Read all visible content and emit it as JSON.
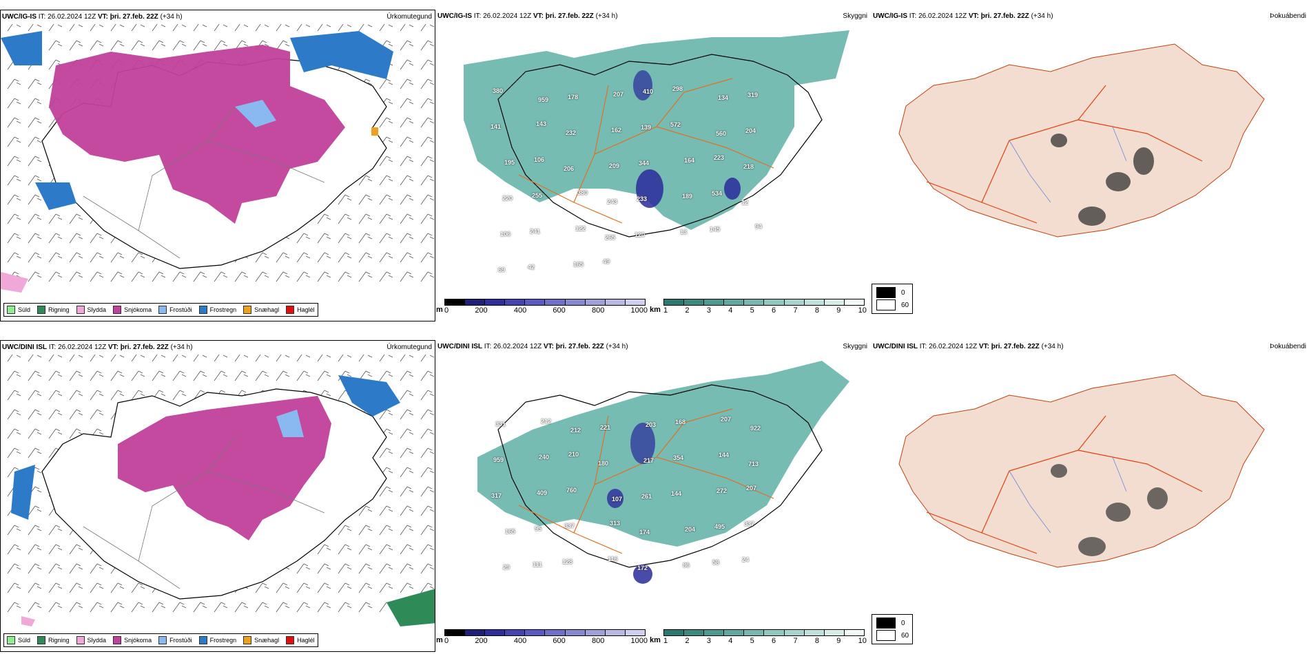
{
  "rows": [
    {
      "precip": {
        "model": "UWC/IG-IS",
        "it": "IT: 26.02.2024 12Z",
        "vt_label": "VT:",
        "vt_value": "þri. 27.feb. 22Z",
        "lead": "(+34 h)",
        "type": "Úrkomutegund"
      },
      "vis": {
        "model": "UWC/IG-IS",
        "it": "IT: 26.02.2024 12Z",
        "vt_label": "VT:",
        "vt_value": "þri. 27.feb. 22Z",
        "lead": "(+34 h)",
        "type": "Skyggni",
        "labels": [
          "380",
          "959",
          "178",
          "207",
          "410",
          "298",
          "134",
          "319",
          "141",
          "143",
          "232",
          "162",
          "139",
          "572",
          "560",
          "204",
          "195",
          "106",
          "206",
          "209",
          "344",
          "164",
          "223",
          "218",
          "220",
          "255",
          "380",
          "243",
          "233",
          "189",
          "534",
          "12",
          "106",
          "241",
          "122",
          "265",
          "120",
          "13",
          "145",
          "94",
          "69",
          "42",
          "165",
          "49"
        ]
      },
      "fog": {
        "model": "UWC/IG-IS",
        "it": "IT: 26.02.2024 12Z",
        "vt_label": "VT:",
        "vt_value": "þri. 27.feb. 22Z",
        "lead": "(+34 h)",
        "type": "Þokuábendi"
      }
    },
    {
      "precip": {
        "model": "UWC/DINI ISL",
        "it": "IT: 26.02.2024 12Z",
        "vt_label": "VT:",
        "vt_value": "þri. 27.feb. 22Z",
        "lead": "(+34 h)",
        "type": "Úrkomutegund"
      },
      "vis": {
        "model": "UWC/DINI ISL",
        "it": "IT: 26.02.2024 12Z",
        "vt_label": "VT:",
        "vt_value": "þri. 27.feb. 22Z",
        "lead": "(+34 h)",
        "type": "Skyggni",
        "labels": [
          "331",
          "212",
          "212",
          "221",
          "203",
          "168",
          "207",
          "922",
          "959",
          "240",
          "210",
          "180",
          "217",
          "354",
          "144",
          "713",
          "317",
          "409",
          "760",
          "107",
          "261",
          "144",
          "272",
          "207",
          "165",
          "95",
          "337",
          "313",
          "174",
          "204",
          "495",
          "337",
          "29",
          "111",
          "128",
          "116",
          "172",
          "86",
          "58",
          "24"
        ]
      },
      "fog": {
        "model": "UWC/DINI ISL",
        "it": "IT: 26.02.2024 12Z",
        "vt_label": "VT:",
        "vt_value": "þri. 27.feb. 22Z",
        "lead": "(+34 h)",
        "type": "Þokuábendi"
      }
    }
  ],
  "precip_legend": [
    {
      "label": "Súld",
      "color": "#90ee90"
    },
    {
      "label": "Rigning",
      "color": "#2e8b57"
    },
    {
      "label": "Slydda",
      "color": "#f0a8d8"
    },
    {
      "label": "Snjókoma",
      "color": "#c0409a"
    },
    {
      "label": "Frostúði",
      "color": "#8ab8f0"
    },
    {
      "label": "Frostregn",
      "color": "#2c7ac8"
    },
    {
      "label": "Snæhagl",
      "color": "#f0a020"
    },
    {
      "label": "Haglél",
      "color": "#e01010"
    }
  ],
  "ceiling_scale": {
    "unit": "m",
    "ticks": [
      "0",
      "200",
      "400",
      "600",
      "800",
      "1000"
    ]
  },
  "visibility_scale": {
    "unit": "km",
    "ticks": [
      "1",
      "2",
      "3",
      "4",
      "5",
      "6",
      "7",
      "8",
      "9",
      "10"
    ]
  },
  "fog_scale": {
    "ticks": [
      "0",
      "60"
    ]
  },
  "colors": {
    "snow": "#c0409a",
    "freezing_rain": "#2c7ac8",
    "freezing_drizzle": "#8ab8f0",
    "rain": "#2e8b57",
    "sleet": "#f0a8d8",
    "snow_grains": "#f0a020",
    "teal": "#4aa59a",
    "navy": "#2a2a9a",
    "road": "#e07020",
    "land_fog": "#f2ddd0"
  }
}
